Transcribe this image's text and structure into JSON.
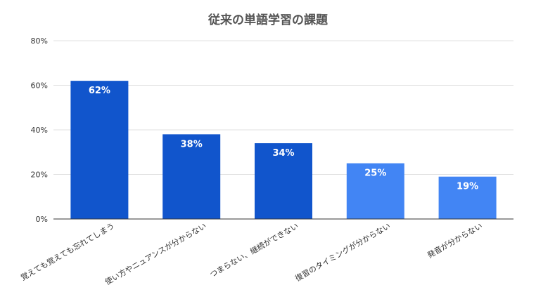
{
  "chart_data": {
    "type": "bar",
    "title": "従来の単語学習の課題",
    "categories": [
      "覚えても覚えても忘れてしまう",
      "使い方やニュアンスが分からない",
      "つまらない、継続ができない",
      "復習のタイミングが分からない",
      "発音が分からない"
    ],
    "values": [
      62,
      38,
      34,
      25,
      19
    ],
    "value_labels": [
      "62%",
      "38%",
      "34%",
      "25%",
      "19%"
    ],
    "bar_colors": [
      "#1155CC",
      "#1155CC",
      "#1155CC",
      "#4285F4",
      "#4285F4"
    ],
    "ylim": [
      0,
      80
    ],
    "yticks": [
      0,
      20,
      40,
      60,
      80
    ],
    "ytick_labels": [
      "0%",
      "20%",
      "40%",
      "60%",
      "80%"
    ],
    "xlabel": "",
    "ylabel": "",
    "grid": true,
    "legend": "none",
    "colors": {
      "grid": "#e0e0e0",
      "axis": "#333333",
      "tick_text": "#333333",
      "bar_label_text": "#ffffff",
      "title_text": "#555555"
    }
  }
}
